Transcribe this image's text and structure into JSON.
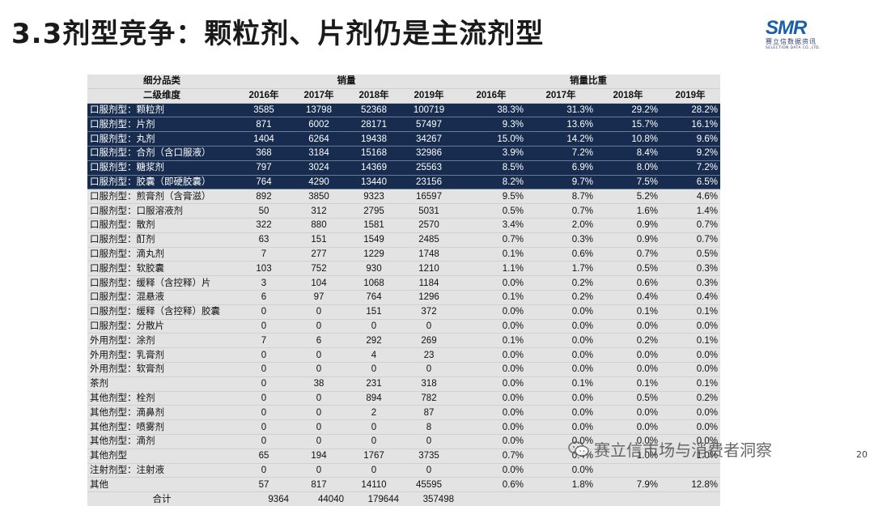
{
  "slide": {
    "title": "3.3剂型竞争：颗粒剂、片剂仍是主流剂型",
    "page_number": "20",
    "watermark": "赛立信市场与消费者洞察"
  },
  "logo": {
    "text": "SMR",
    "cn_name": "赛立信数据资讯",
    "en_name": "SELECTION DATA CO.,LTD."
  },
  "table": {
    "header1": {
      "category": "细分品类",
      "sales": "销量",
      "share": "销量比重"
    },
    "header2": {
      "subcat": "二级维度",
      "years": [
        "2016年",
        "2017年",
        "2018年",
        "2019年"
      ]
    },
    "rows": [
      {
        "name": "口服剂型：颗粒剂",
        "sales": [
          "3585",
          "13798",
          "52368",
          "100719"
        ],
        "share": [
          "38.3%",
          "31.3%",
          "29.2%",
          "28.2%"
        ],
        "highlight": true
      },
      {
        "name": "口服剂型：片剂",
        "sales": [
          "871",
          "6002",
          "28171",
          "57497"
        ],
        "share": [
          "9.3%",
          "13.6%",
          "15.7%",
          "16.1%"
        ],
        "highlight": true
      },
      {
        "name": "口服剂型：丸剂",
        "sales": [
          "1404",
          "6264",
          "19438",
          "34267"
        ],
        "share": [
          "15.0%",
          "14.2%",
          "10.8%",
          "9.6%"
        ],
        "highlight": true
      },
      {
        "name": "口服剂型：合剂（含口服液）",
        "sales": [
          "368",
          "3184",
          "15168",
          "32986"
        ],
        "share": [
          "3.9%",
          "7.2%",
          "8.4%",
          "9.2%"
        ],
        "highlight": true
      },
      {
        "name": "口服剂型：糖浆剂",
        "sales": [
          "797",
          "3024",
          "14369",
          "25563"
        ],
        "share": [
          "8.5%",
          "6.9%",
          "8.0%",
          "7.2%"
        ],
        "highlight": true
      },
      {
        "name": "口服剂型：胶囊（即硬胶囊）",
        "sales": [
          "764",
          "4290",
          "13440",
          "23156"
        ],
        "share": [
          "8.2%",
          "9.7%",
          "7.5%",
          "6.5%"
        ],
        "highlight": true
      },
      {
        "name": "口服剂型：煎膏剂（含膏滋）",
        "sales": [
          "892",
          "3850",
          "9323",
          "16597"
        ],
        "share": [
          "9.5%",
          "8.7%",
          "5.2%",
          "4.6%"
        ],
        "highlight": false
      },
      {
        "name": "口服剂型：口服溶液剂",
        "sales": [
          "50",
          "312",
          "2795",
          "5031"
        ],
        "share": [
          "0.5%",
          "0.7%",
          "1.6%",
          "1.4%"
        ],
        "highlight": false
      },
      {
        "name": "口服剂型：散剂",
        "sales": [
          "322",
          "880",
          "1581",
          "2570"
        ],
        "share": [
          "3.4%",
          "2.0%",
          "0.9%",
          "0.7%"
        ],
        "highlight": false
      },
      {
        "name": "口服剂型：酊剂",
        "sales": [
          "63",
          "151",
          "1549",
          "2485"
        ],
        "share": [
          "0.7%",
          "0.3%",
          "0.9%",
          "0.7%"
        ],
        "highlight": false
      },
      {
        "name": "口服剂型：滴丸剂",
        "sales": [
          "7",
          "277",
          "1229",
          "1748"
        ],
        "share": [
          "0.1%",
          "0.6%",
          "0.7%",
          "0.5%"
        ],
        "highlight": false
      },
      {
        "name": "口服剂型：软胶囊",
        "sales": [
          "103",
          "752",
          "930",
          "1210"
        ],
        "share": [
          "1.1%",
          "1.7%",
          "0.5%",
          "0.3%"
        ],
        "highlight": false
      },
      {
        "name": "口服剂型：缓释（含控释）片",
        "sales": [
          "3",
          "104",
          "1068",
          "1184"
        ],
        "share": [
          "0.0%",
          "0.2%",
          "0.6%",
          "0.3%"
        ],
        "highlight": false
      },
      {
        "name": "口服剂型：混悬液",
        "sales": [
          "6",
          "97",
          "764",
          "1296"
        ],
        "share": [
          "0.1%",
          "0.2%",
          "0.4%",
          "0.4%"
        ],
        "highlight": false
      },
      {
        "name": "口服剂型：缓释（含控释）胶囊",
        "sales": [
          "0",
          "0",
          "151",
          "372"
        ],
        "share": [
          "0.0%",
          "0.0%",
          "0.1%",
          "0.1%"
        ],
        "highlight": false
      },
      {
        "name": "口服剂型：分散片",
        "sales": [
          "0",
          "0",
          "0",
          "0"
        ],
        "share": [
          "0.0%",
          "0.0%",
          "0.0%",
          "0.0%"
        ],
        "highlight": false
      },
      {
        "name": "外用剂型：涂剂",
        "sales": [
          "7",
          "6",
          "292",
          "269"
        ],
        "share": [
          "0.1%",
          "0.0%",
          "0.2%",
          "0.1%"
        ],
        "highlight": false
      },
      {
        "name": "外用剂型：乳膏剂",
        "sales": [
          "0",
          "0",
          "4",
          "23"
        ],
        "share": [
          "0.0%",
          "0.0%",
          "0.0%",
          "0.0%"
        ],
        "highlight": false
      },
      {
        "name": "外用剂型：软膏剂",
        "sales": [
          "0",
          "0",
          "0",
          "0"
        ],
        "share": [
          "0.0%",
          "0.0%",
          "0.0%",
          "0.0%"
        ],
        "highlight": false
      },
      {
        "name": "茶剂",
        "sales": [
          "0",
          "38",
          "231",
          "318"
        ],
        "share": [
          "0.0%",
          "0.1%",
          "0.1%",
          "0.1%"
        ],
        "highlight": false
      },
      {
        "name": "其他剂型：栓剂",
        "sales": [
          "0",
          "0",
          "894",
          "782"
        ],
        "share": [
          "0.0%",
          "0.0%",
          "0.5%",
          "0.2%"
        ],
        "highlight": false
      },
      {
        "name": "其他剂型：滴鼻剂",
        "sales": [
          "0",
          "0",
          "2",
          "87"
        ],
        "share": [
          "0.0%",
          "0.0%",
          "0.0%",
          "0.0%"
        ],
        "highlight": false
      },
      {
        "name": "其他剂型：喷雾剂",
        "sales": [
          "0",
          "0",
          "0",
          "8"
        ],
        "share": [
          "0.0%",
          "0.0%",
          "0.0%",
          "0.0%"
        ],
        "highlight": false
      },
      {
        "name": "其他剂型：滴剂",
        "sales": [
          "0",
          "0",
          "0",
          "0"
        ],
        "share": [
          "0.0%",
          "0.0%",
          "0.0%",
          "0.0%"
        ],
        "highlight": false
      },
      {
        "name": "其他剂型",
        "sales": [
          "65",
          "194",
          "1767",
          "3735"
        ],
        "share": [
          "0.7%",
          "0.4%",
          "1.0%",
          "1.0%"
        ],
        "highlight": false
      },
      {
        "name": "注射剂型：注射液",
        "sales": [
          "0",
          "0",
          "0",
          "0"
        ],
        "share": [
          "0.0%",
          "0.0%",
          "",
          ""
        ],
        "highlight": false
      },
      {
        "name": "其他",
        "sales": [
          "57",
          "817",
          "14110",
          "45595"
        ],
        "share": [
          "0.6%",
          "1.8%",
          "7.9%",
          "12.8%"
        ],
        "highlight": false
      }
    ],
    "total": {
      "label": "合计",
      "sales": [
        "9364",
        "44040",
        "179644",
        "357498"
      ]
    }
  }
}
